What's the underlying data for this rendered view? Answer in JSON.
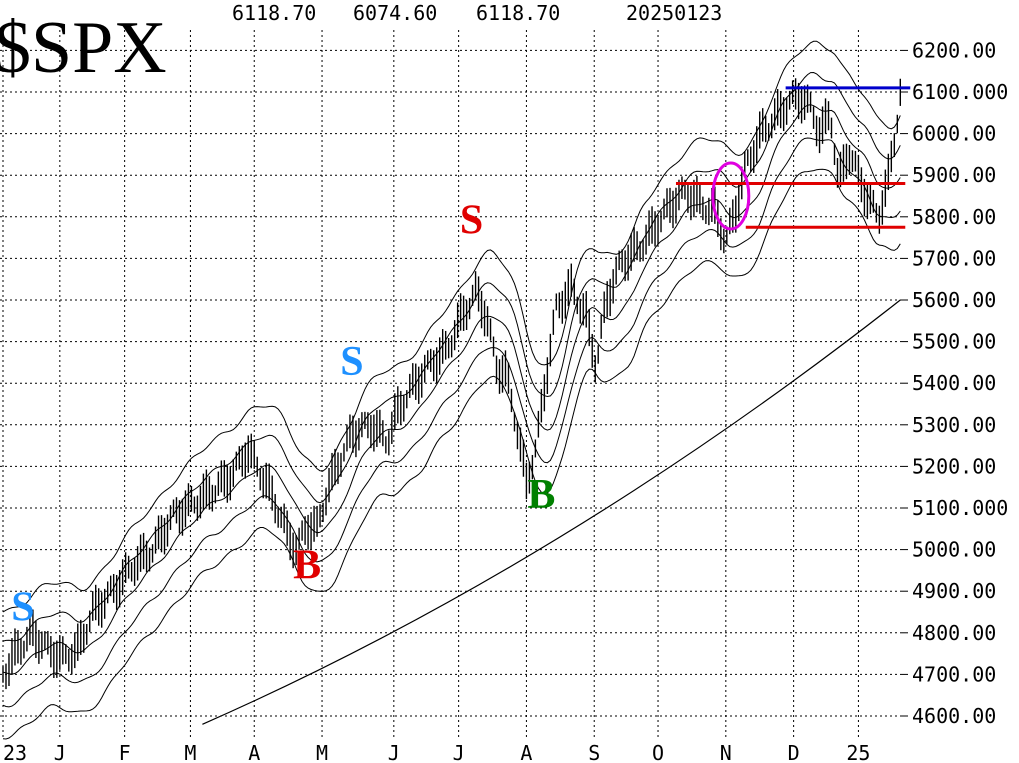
{
  "chart_data": {
    "type": "line",
    "symbol": "$SPX",
    "header_values": [
      "6118.70",
      "6074.60",
      "6118.70"
    ],
    "header_date": "20250123",
    "ylim": [
      4550,
      6260
    ],
    "y_ticks": [
      {
        "value": 6200,
        "label": "6200.00"
      },
      {
        "value": 6100,
        "label": "6100.000"
      },
      {
        "value": 6000,
        "label": "6000.00"
      },
      {
        "value": 5900,
        "label": "5900.00"
      },
      {
        "value": 5800,
        "label": "5800.00"
      },
      {
        "value": 5700,
        "label": "5700.00"
      },
      {
        "value": 5600,
        "label": "5600.00"
      },
      {
        "value": 5500,
        "label": "5500.00"
      },
      {
        "value": 5400,
        "label": "5400.00"
      },
      {
        "value": 5300,
        "label": "5300.00"
      },
      {
        "value": 5200,
        "label": "5200.00"
      },
      {
        "value": 5100,
        "label": "5100.000"
      },
      {
        "value": 5000,
        "label": "5000.00"
      },
      {
        "value": 4900,
        "label": "4900.00"
      },
      {
        "value": 4800,
        "label": "4800.00"
      },
      {
        "value": 4700,
        "label": "4700.00"
      },
      {
        "value": 4600,
        "label": "4600.00"
      }
    ],
    "x_ticks": [
      {
        "t": 0,
        "label": "23"
      },
      {
        "t": 57,
        "label": "J"
      },
      {
        "t": 122,
        "label": "F"
      },
      {
        "t": 188,
        "label": "M"
      },
      {
        "t": 252,
        "label": "A"
      },
      {
        "t": 320,
        "label": "M"
      },
      {
        "t": 392,
        "label": "J"
      },
      {
        "t": 457,
        "label": "J"
      },
      {
        "t": 525,
        "label": "A"
      },
      {
        "t": 593,
        "label": "S"
      },
      {
        "t": 657,
        "label": "O"
      },
      {
        "t": 725,
        "label": "N"
      },
      {
        "t": 793,
        "label": "D"
      },
      {
        "t": 858,
        "label": "25"
      }
    ],
    "price_series": [
      [
        0,
        4700
      ],
      [
        15,
        4760
      ],
      [
        30,
        4800
      ],
      [
        45,
        4760
      ],
      [
        60,
        4740
      ],
      [
        75,
        4760
      ],
      [
        90,
        4850
      ],
      [
        110,
        4900
      ],
      [
        130,
        4960
      ],
      [
        150,
        5000
      ],
      [
        170,
        5080
      ],
      [
        190,
        5110
      ],
      [
        210,
        5140
      ],
      [
        230,
        5180
      ],
      [
        245,
        5240
      ],
      [
        255,
        5200
      ],
      [
        270,
        5130
      ],
      [
        285,
        5040
      ],
      [
        295,
        5000
      ],
      [
        305,
        5060
      ],
      [
        315,
        5050
      ],
      [
        325,
        5140
      ],
      [
        335,
        5200
      ],
      [
        350,
        5280
      ],
      [
        370,
        5300
      ],
      [
        385,
        5260
      ],
      [
        395,
        5330
      ],
      [
        410,
        5390
      ],
      [
        430,
        5450
      ],
      [
        445,
        5480
      ],
      [
        460,
        5560
      ],
      [
        475,
        5620
      ],
      [
        485,
        5560
      ],
      [
        495,
        5440
      ],
      [
        505,
        5420
      ],
      [
        515,
        5300
      ],
      [
        525,
        5160
      ],
      [
        535,
        5250
      ],
      [
        545,
        5420
      ],
      [
        555,
        5580
      ],
      [
        570,
        5630
      ],
      [
        585,
        5560
      ],
      [
        595,
        5440
      ],
      [
        605,
        5600
      ],
      [
        620,
        5690
      ],
      [
        640,
        5730
      ],
      [
        655,
        5780
      ],
      [
        670,
        5830
      ],
      [
        685,
        5860
      ],
      [
        700,
        5830
      ],
      [
        715,
        5810
      ],
      [
        725,
        5740
      ],
      [
        735,
        5820
      ],
      [
        745,
        5920
      ],
      [
        760,
        6000
      ],
      [
        775,
        6040
      ],
      [
        790,
        6080
      ],
      [
        800,
        6090
      ],
      [
        810,
        6060
      ],
      [
        820,
        6000
      ],
      [
        830,
        6050
      ],
      [
        838,
        5880
      ],
      [
        848,
        5960
      ],
      [
        858,
        5900
      ],
      [
        868,
        5840
      ],
      [
        878,
        5800
      ],
      [
        888,
        5890
      ],
      [
        895,
        6000
      ],
      [
        900,
        6100
      ]
    ],
    "ma_long": [
      [
        200,
        4580
      ],
      [
        900,
        5600
      ]
    ],
    "signals": [
      {
        "label": "S",
        "t": 20,
        "value": 4830,
        "color": "#1e90ff"
      },
      {
        "label": "B",
        "t": 305,
        "value": 4930,
        "color": "#e00000"
      },
      {
        "label": "S",
        "t": 350,
        "value": 5420,
        "color": "#1e90ff"
      },
      {
        "label": "S",
        "t": 470,
        "value": 5760,
        "color": "#e00000"
      },
      {
        "label": "B",
        "t": 540,
        "value": 5100,
        "color": "#008000"
      }
    ],
    "levels": [
      {
        "value": 6110,
        "t_start": 785,
        "t_end": 910,
        "color": "#0000cc"
      },
      {
        "value": 5880,
        "t_start": 675,
        "t_end": 905,
        "color": "#e00000"
      },
      {
        "value": 5775,
        "t_start": 745,
        "t_end": 905,
        "color": "#e00000"
      }
    ],
    "highlight": {
      "t": 730,
      "value": 5850,
      "color": "#e000e0"
    },
    "colors": {
      "price": "#000000",
      "grid": "#000000",
      "text": "#000000"
    }
  }
}
